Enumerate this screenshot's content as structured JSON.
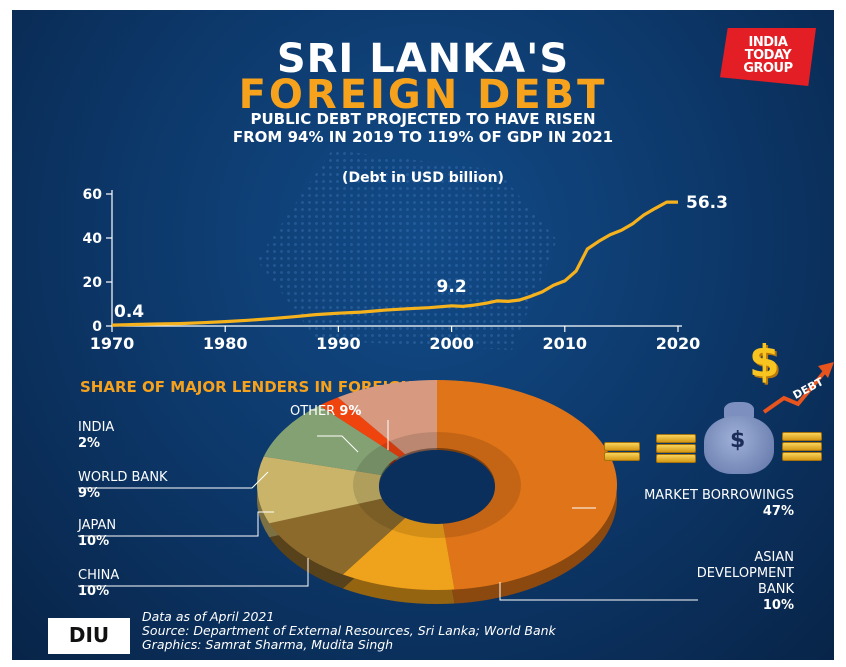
{
  "header": {
    "title_line1": "SRI LANKA'S",
    "title_line2": "FOREIGN DEBT",
    "subtitle_line1": "PUBLIC DEBT PROJECTED TO HAVE RISEN",
    "subtitle_line2": "FROM 94% IN 2019 TO 119% OF GDP IN 2021",
    "brand_line1": "INDIA",
    "brand_line2": "TODAY",
    "brand_line3": "GROUP"
  },
  "colors": {
    "accent": "#f6a21d",
    "background": "#0c3667",
    "line": "#f6b21c"
  },
  "chart_data": [
    {
      "type": "line",
      "ylabel": "(Debt in USD billion)",
      "x_ticks": [
        "1970",
        "1980",
        "1990",
        "2000",
        "2010",
        "2020"
      ],
      "y_ticks": [
        "0",
        "20",
        "40",
        "60"
      ],
      "xlim": [
        1970,
        2020
      ],
      "ylim": [
        0,
        60
      ],
      "x": [
        1970,
        1972,
        1974,
        1976,
        1978,
        1980,
        1982,
        1984,
        1986,
        1988,
        1990,
        1992,
        1994,
        1996,
        1998,
        2000,
        2001,
        2002,
        2003,
        2004,
        2005,
        2006,
        2007,
        2008,
        2009,
        2010,
        2011,
        2012,
        2013,
        2014,
        2015,
        2016,
        2017,
        2018,
        2019,
        2020
      ],
      "values": [
        0.4,
        0.7,
        0.9,
        1.1,
        1.5,
        2.0,
        2.6,
        3.3,
        4.2,
        5.2,
        5.8,
        6.3,
        7.2,
        7.8,
        8.3,
        9.2,
        8.9,
        9.5,
        10.3,
        11.4,
        11.2,
        11.8,
        13.5,
        15.5,
        18.5,
        20.5,
        25,
        35,
        38.5,
        41.5,
        43.5,
        46.5,
        50.5,
        53.5,
        56.3,
        56.3
      ],
      "annotations": [
        {
          "label": "0.4",
          "x": 1970,
          "y": 0.4
        },
        {
          "label": "9.2",
          "x": 2000,
          "y": 9.2
        },
        {
          "label": "56.3",
          "x": 2020,
          "y": 56.3
        }
      ]
    },
    {
      "type": "pie",
      "title": "SHARE OF MAJOR LENDERS IN FOREIGN DEBT",
      "slices": [
        {
          "name": "MARKET BORROWINGS",
          "value": 47,
          "label": "47%",
          "color": "#e07418"
        },
        {
          "name": "ASIAN DEVELOPMENT BANK",
          "value": 10,
          "label": "10%",
          "color": "#efa21b"
        },
        {
          "name": "CHINA",
          "value": 10,
          "label": "10%",
          "color": "#8c6a2c"
        },
        {
          "name": "JAPAN",
          "value": 10,
          "label": "10%",
          "color": "#c9b46a"
        },
        {
          "name": "WORLD BANK",
          "value": 9,
          "label": "9%",
          "color": "#84a174"
        },
        {
          "name": "INDIA",
          "value": 2,
          "label": "2%",
          "color": "#f0440f"
        },
        {
          "name": "OTHER",
          "value": 9,
          "label": "9%",
          "color": "#d79a80"
        }
      ]
    }
  ],
  "icon_labels": {
    "debt_arrow_text": "DEBT"
  },
  "footer": {
    "line1": "Data as of April 2021",
    "line2": "Source: Department of External Resources, Sri Lanka; World Bank",
    "line3": "Graphics: Samrat Sharma, Mudita Singh",
    "logo_text": "DIU"
  }
}
